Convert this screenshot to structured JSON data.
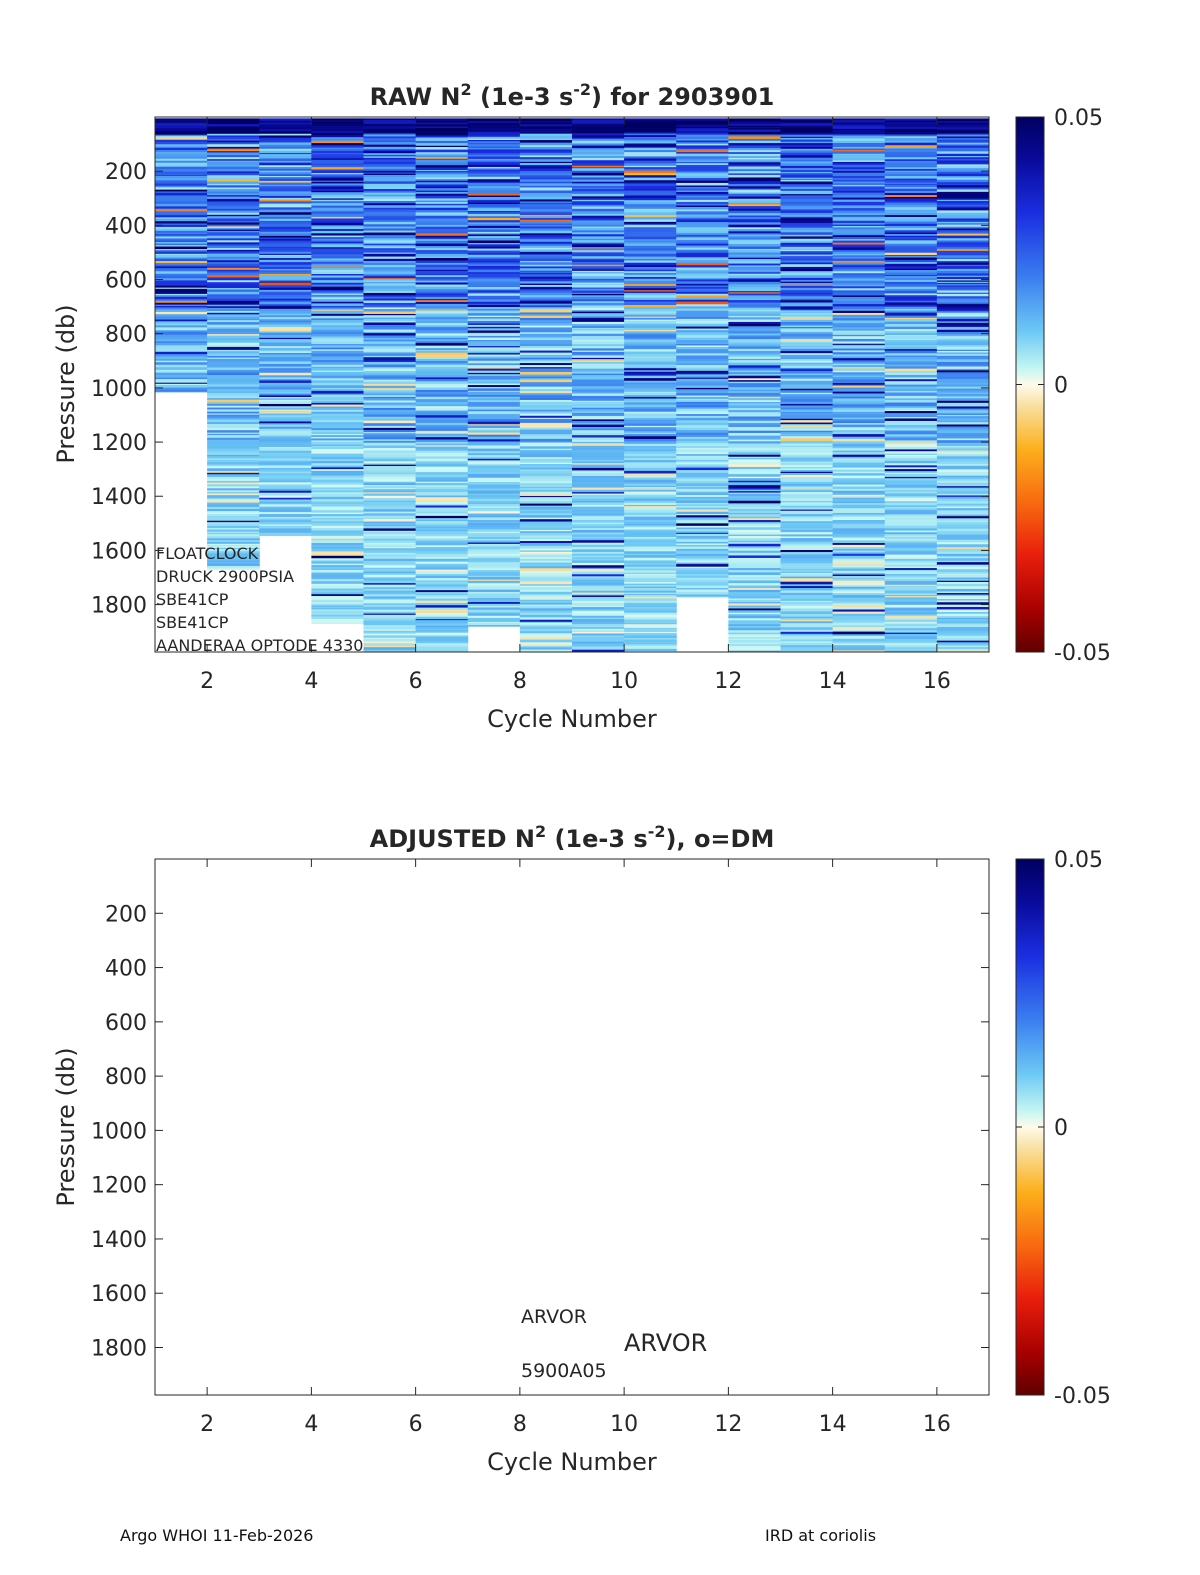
{
  "chart_data": [
    {
      "type": "heatmap",
      "title": "RAW N",
      "title_sup": "2",
      "title_mid": " (1e-3 s",
      "title_sup2": "-2",
      "title_end": ") for 2903901",
      "xlabel": "Cycle Number",
      "ylabel": "Pressure (db)",
      "xlim": [
        1,
        17
      ],
      "ylim": [
        0,
        1975
      ],
      "y_reversed": true,
      "xticks": [
        2,
        4,
        6,
        8,
        10,
        12,
        14,
        16
      ],
      "yticks": [
        200,
        400,
        600,
        800,
        1000,
        1200,
        1400,
        1600,
        1800
      ],
      "colorbar": {
        "min": -0.05,
        "max": 0.05,
        "ticks": [
          "0.05",
          "0",
          "-0.05"
        ]
      },
      "cycles": [
        1,
        2,
        3,
        4,
        5,
        6,
        7,
        8,
        9,
        10,
        11,
        12,
        13,
        14,
        15,
        16
      ],
      "max_pressure": [
        1015,
        1670,
        1545,
        1870,
        1975,
        1975,
        1880,
        1975,
        1975,
        1975,
        1775,
        1975,
        1975,
        1975,
        1975,
        1975
      ],
      "annotations": [
        "FLOATCLOCK",
        "DRUCK 2900PSIA",
        "SBE41CP",
        "SBE41CP",
        "AANDERAA OPTODE 4330"
      ]
    },
    {
      "type": "heatmap",
      "title": "ADJUSTED N",
      "title_sup": "2",
      "title_mid": " (1e-3 s",
      "title_sup2": "-2",
      "title_end": "), o=DM",
      "xlabel": "Cycle Number",
      "ylabel": "Pressure (db)",
      "xlim": [
        1,
        17
      ],
      "ylim": [
        0,
        1975
      ],
      "y_reversed": true,
      "xticks": [
        2,
        4,
        6,
        8,
        10,
        12,
        14,
        16
      ],
      "yticks": [
        200,
        400,
        600,
        800,
        1000,
        1200,
        1400,
        1600,
        1800
      ],
      "colorbar": {
        "min": -0.05,
        "max": 0.05,
        "ticks": [
          "0.05",
          "0",
          "-0.05"
        ]
      },
      "annotations": [
        "ARVOR",
        "ARVOR",
        "5900A05"
      ]
    }
  ],
  "footer": {
    "left": "Argo WHOI 11-Feb-2026",
    "right": "IRD at coriolis"
  }
}
